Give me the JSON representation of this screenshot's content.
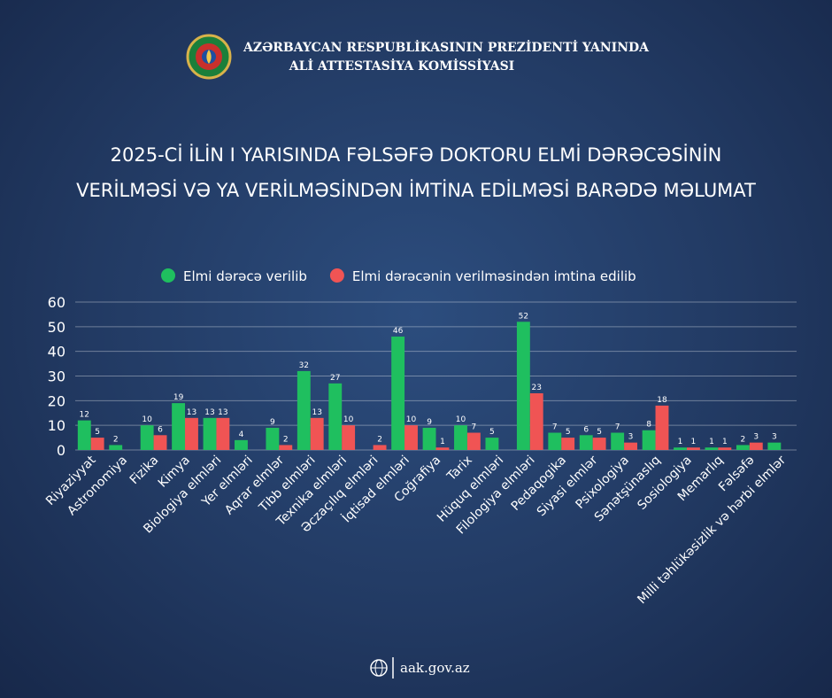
{
  "header": {
    "org_line1": "AZƏRBAYCAN RESPUBLİKASININ PREZİDENTİ YANINDA",
    "org_line2": "ALİ ATTESTASİYA KOMİSSİYASI"
  },
  "chart_data": {
    "type": "bar",
    "title": [
      "2025-Cİ İLİN I YARISINDA FƏLSƏFƏ DOKTORU ELMİ DƏRƏCƏSİNİN",
      "VERİLMƏSİ VƏ YA VERİLMƏSİNDƏN İMTİNA EDİLMƏSİ BARƏDƏ MƏLUMAT"
    ],
    "categories": [
      "Riyaziyyat",
      "Astronomiya",
      "Fizika",
      "Kimya",
      "Biologiya elmləri",
      "Yer elmləri",
      "Aqrar elmlər",
      "Tibb elmləri",
      "Texnika elmləri",
      "Əczaçılıq elmləri",
      "İqtisad elmləri",
      "Coğrafiya",
      "Tarix",
      "Hüquq elmləri",
      "Filologiya elmləri",
      "Pedaqogika",
      "Siyasi elmlər",
      "Psixologiya",
      "Sənətşünaslıq",
      "Sosiologiya",
      "Memarlıq",
      "Fəlsəfə",
      "Milli təhlükəsizlik və hərbi elmlər"
    ],
    "series": [
      {
        "name": "Elmi dərəcə verilib",
        "color": "#1fbf5f",
        "values": [
          12,
          2,
          10,
          19,
          13,
          4,
          9,
          32,
          27,
          null,
          46,
          9,
          10,
          5,
          52,
          7,
          6,
          7,
          8,
          1,
          1,
          2,
          3
        ]
      },
      {
        "name": "Elmi dərəcənin verilməsindən imtina edilib",
        "color": "#f05454",
        "values": [
          5,
          null,
          6,
          13,
          13,
          null,
          2,
          13,
          10,
          2,
          10,
          1,
          7,
          null,
          23,
          5,
          5,
          3,
          18,
          1,
          1,
          3,
          null
        ]
      }
    ],
    "ylim": [
      0,
      60
    ],
    "yticks": [
      0,
      10,
      20,
      30,
      40,
      50,
      60
    ],
    "grid": true,
    "legend": "top"
  },
  "footer": "aak.gov.az"
}
